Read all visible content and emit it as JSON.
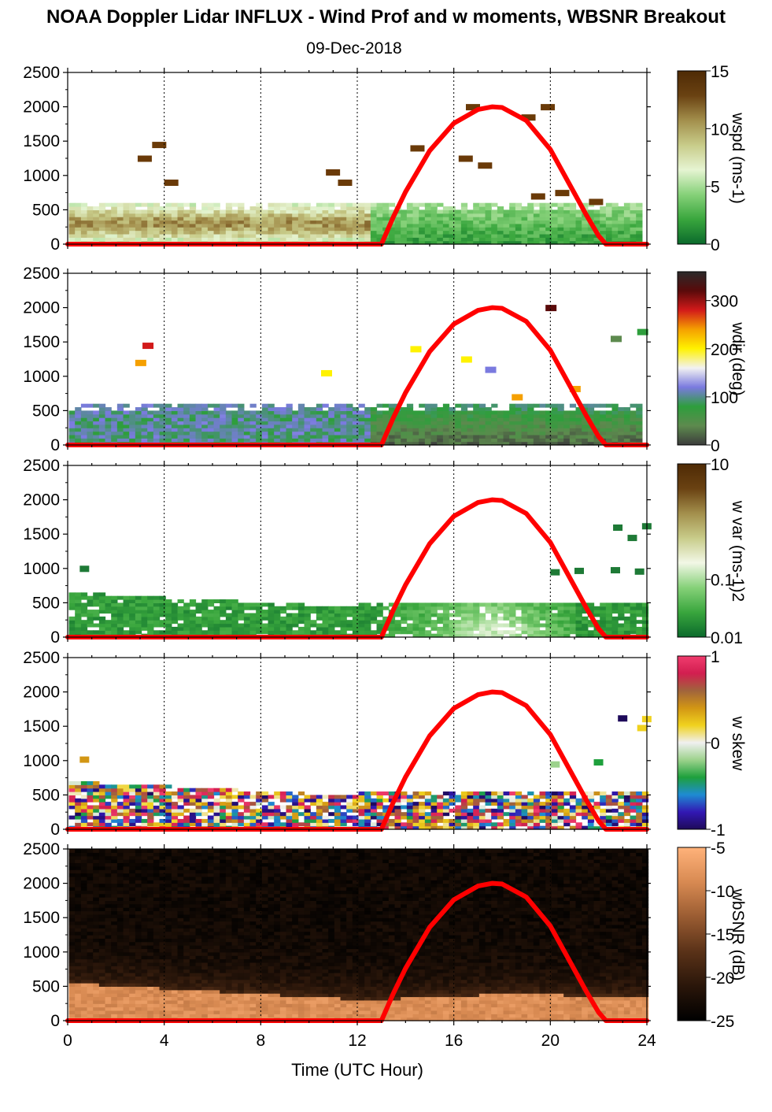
{
  "title": "NOAA Doppler Lidar INFLUX - Wind Prof and w moments, WBSNR Breakout",
  "subtitle": "09-Dec-2018",
  "chart_data": [
    {
      "type": "heatmap",
      "name": "wspd",
      "xlabel": "Time (UTC Hour)",
      "ylabel": "",
      "xlim": [
        0,
        24
      ],
      "ylim": [
        0,
        2500
      ],
      "xticks": [
        "0",
        "4",
        "8",
        "12",
        "16",
        "20",
        "24"
      ],
      "yticks": [
        "0",
        "500",
        "1000",
        "1500",
        "2000",
        "2500"
      ],
      "vertical_gridlines_dotted": [
        4,
        8,
        12,
        16,
        20,
        24
      ],
      "colorbar": {
        "label": "wspd (ms-1)",
        "ticks": [
          "15",
          "10",
          "5",
          "0"
        ],
        "range": [
          0,
          15
        ],
        "colors": [
          "#0b6a2c",
          "#39a63d",
          "#86d179",
          "#e6f4d2",
          "#c8cc8a",
          "#a38f4c",
          "#6a4212",
          "#4e2a05"
        ]
      },
      "data_extent": {
        "top_m": 600,
        "x_end_h": 23.8
      },
      "scattered_high_values_m": [
        [
          3.5,
          1450
        ],
        [
          2.9,
          1250
        ],
        [
          4,
          900
        ],
        [
          10.7,
          1050
        ],
        [
          11.2,
          900
        ],
        [
          14.2,
          1400
        ],
        [
          16.2,
          1250
        ],
        [
          17.0,
          1150
        ],
        [
          18.8,
          1850
        ],
        [
          19.6,
          2000
        ],
        [
          16.5,
          2000
        ],
        [
          19.2,
          700
        ],
        [
          20.2,
          750
        ],
        [
          21.6,
          620
        ]
      ],
      "overlay": {
        "name": "solar elevation curve",
        "color": "#ff0000",
        "x": [
          0,
          13,
          13.5,
          14,
          15,
          16,
          17,
          17.6,
          18,
          19,
          20,
          21,
          21.5,
          22,
          22.3,
          24
        ],
        "y": [
          0,
          0,
          400,
          760,
          1360,
          1760,
          1960,
          2000,
          1990,
          1800,
          1380,
          740,
          420,
          120,
          0,
          0
        ]
      }
    },
    {
      "type": "heatmap",
      "name": "wdir",
      "xlabel": "Time (UTC Hour)",
      "ylabel": "",
      "xlim": [
        0,
        24
      ],
      "ylim": [
        0,
        2500
      ],
      "xticks": [
        "0",
        "4",
        "8",
        "12",
        "16",
        "20",
        "24"
      ],
      "yticks": [
        "0",
        "500",
        "1000",
        "1500",
        "2000",
        "2500"
      ],
      "colorbar": {
        "label": "wdir (deg)",
        "ticks": [
          "300",
          "200",
          "100",
          "0"
        ],
        "range": [
          0,
          360
        ],
        "colors": [
          "#3c3c3c",
          "#5d8a4e",
          "#2e9e3c",
          "#7a7adf",
          "#f2f2f2",
          "#fff200",
          "#f5a000",
          "#d21a1a",
          "#5a0a0a",
          "#2a2a2a"
        ]
      },
      "data_extent": {
        "top_m": 600,
        "x_end_h": 23.8
      },
      "overlay": {
        "name": "solar elevation curve",
        "color": "#ff0000"
      }
    },
    {
      "type": "heatmap",
      "name": "w var",
      "xlabel": "Time (UTC Hour)",
      "ylabel": "",
      "xlim": [
        0,
        24
      ],
      "ylim": [
        0,
        2500
      ],
      "xticks": [
        "0",
        "4",
        "8",
        "12",
        "16",
        "20",
        "24"
      ],
      "yticks": [
        "0",
        "500",
        "1000",
        "1500",
        "2000",
        "2500"
      ],
      "colorbar": {
        "label": "w var (ms-1)2",
        "ticks": [
          "10",
          "0.1",
          "0.01"
        ],
        "scale": "log",
        "range": [
          0.01,
          10
        ],
        "colors": [
          "#0b6a2c",
          "#39a63d",
          "#86d179",
          "#f2f7e6",
          "#c8cc8a",
          "#a38f4c",
          "#6a4212",
          "#4e2a05"
        ]
      },
      "data_extent": {
        "top_m": 650,
        "x_end_h": 24
      },
      "overlay": {
        "name": "solar elevation curve",
        "color": "#ff0000"
      }
    },
    {
      "type": "heatmap",
      "name": "w skew",
      "xlabel": "Time (UTC Hour)",
      "ylabel": "",
      "xlim": [
        0,
        24
      ],
      "ylim": [
        0,
        2500
      ],
      "xticks": [
        "0",
        "4",
        "8",
        "12",
        "16",
        "20",
        "24"
      ],
      "yticks": [
        "0",
        "500",
        "1000",
        "1500",
        "2000",
        "2500"
      ],
      "colorbar": {
        "label": "w skew",
        "ticks": [
          "1",
          "0",
          "-1"
        ],
        "range": [
          -1,
          1
        ],
        "colors": [
          "#1e0a5a",
          "#3218b4",
          "#1e8cd2",
          "#1ea03c",
          "#9cd28c",
          "#f0f0f0",
          "#f0d21e",
          "#d29614",
          "#a0643c",
          "#d21e50",
          "#f03c6e"
        ]
      },
      "data_extent": {
        "top_m": 700,
        "x_end_h": 24
      },
      "overlay": {
        "name": "solar elevation curve",
        "color": "#ff0000"
      }
    },
    {
      "type": "heatmap",
      "name": "wbSNR",
      "xlabel": "Time (UTC Hour)",
      "ylabel": "",
      "xlim": [
        0,
        24
      ],
      "ylim": [
        0,
        2500
      ],
      "xticks": [
        "0",
        "4",
        "8",
        "12",
        "16",
        "20",
        "24"
      ],
      "yticks": [
        "0",
        "500",
        "1000",
        "1500",
        "2000",
        "2500"
      ],
      "colorbar": {
        "label": "wbSNR (dB)",
        "ticks": [
          "-5",
          "-10",
          "-15",
          "-20",
          "-25"
        ],
        "range": [
          -25,
          -5
        ],
        "colors": [
          "#000000",
          "#2a160a",
          "#5a3218",
          "#9a5c32",
          "#d88a52",
          "#ffb27a"
        ]
      },
      "data_extent": {
        "top_m": 2500,
        "x_end_h": 24
      },
      "overlay": {
        "name": "solar elevation curve",
        "color": "#ff0000"
      }
    }
  ]
}
